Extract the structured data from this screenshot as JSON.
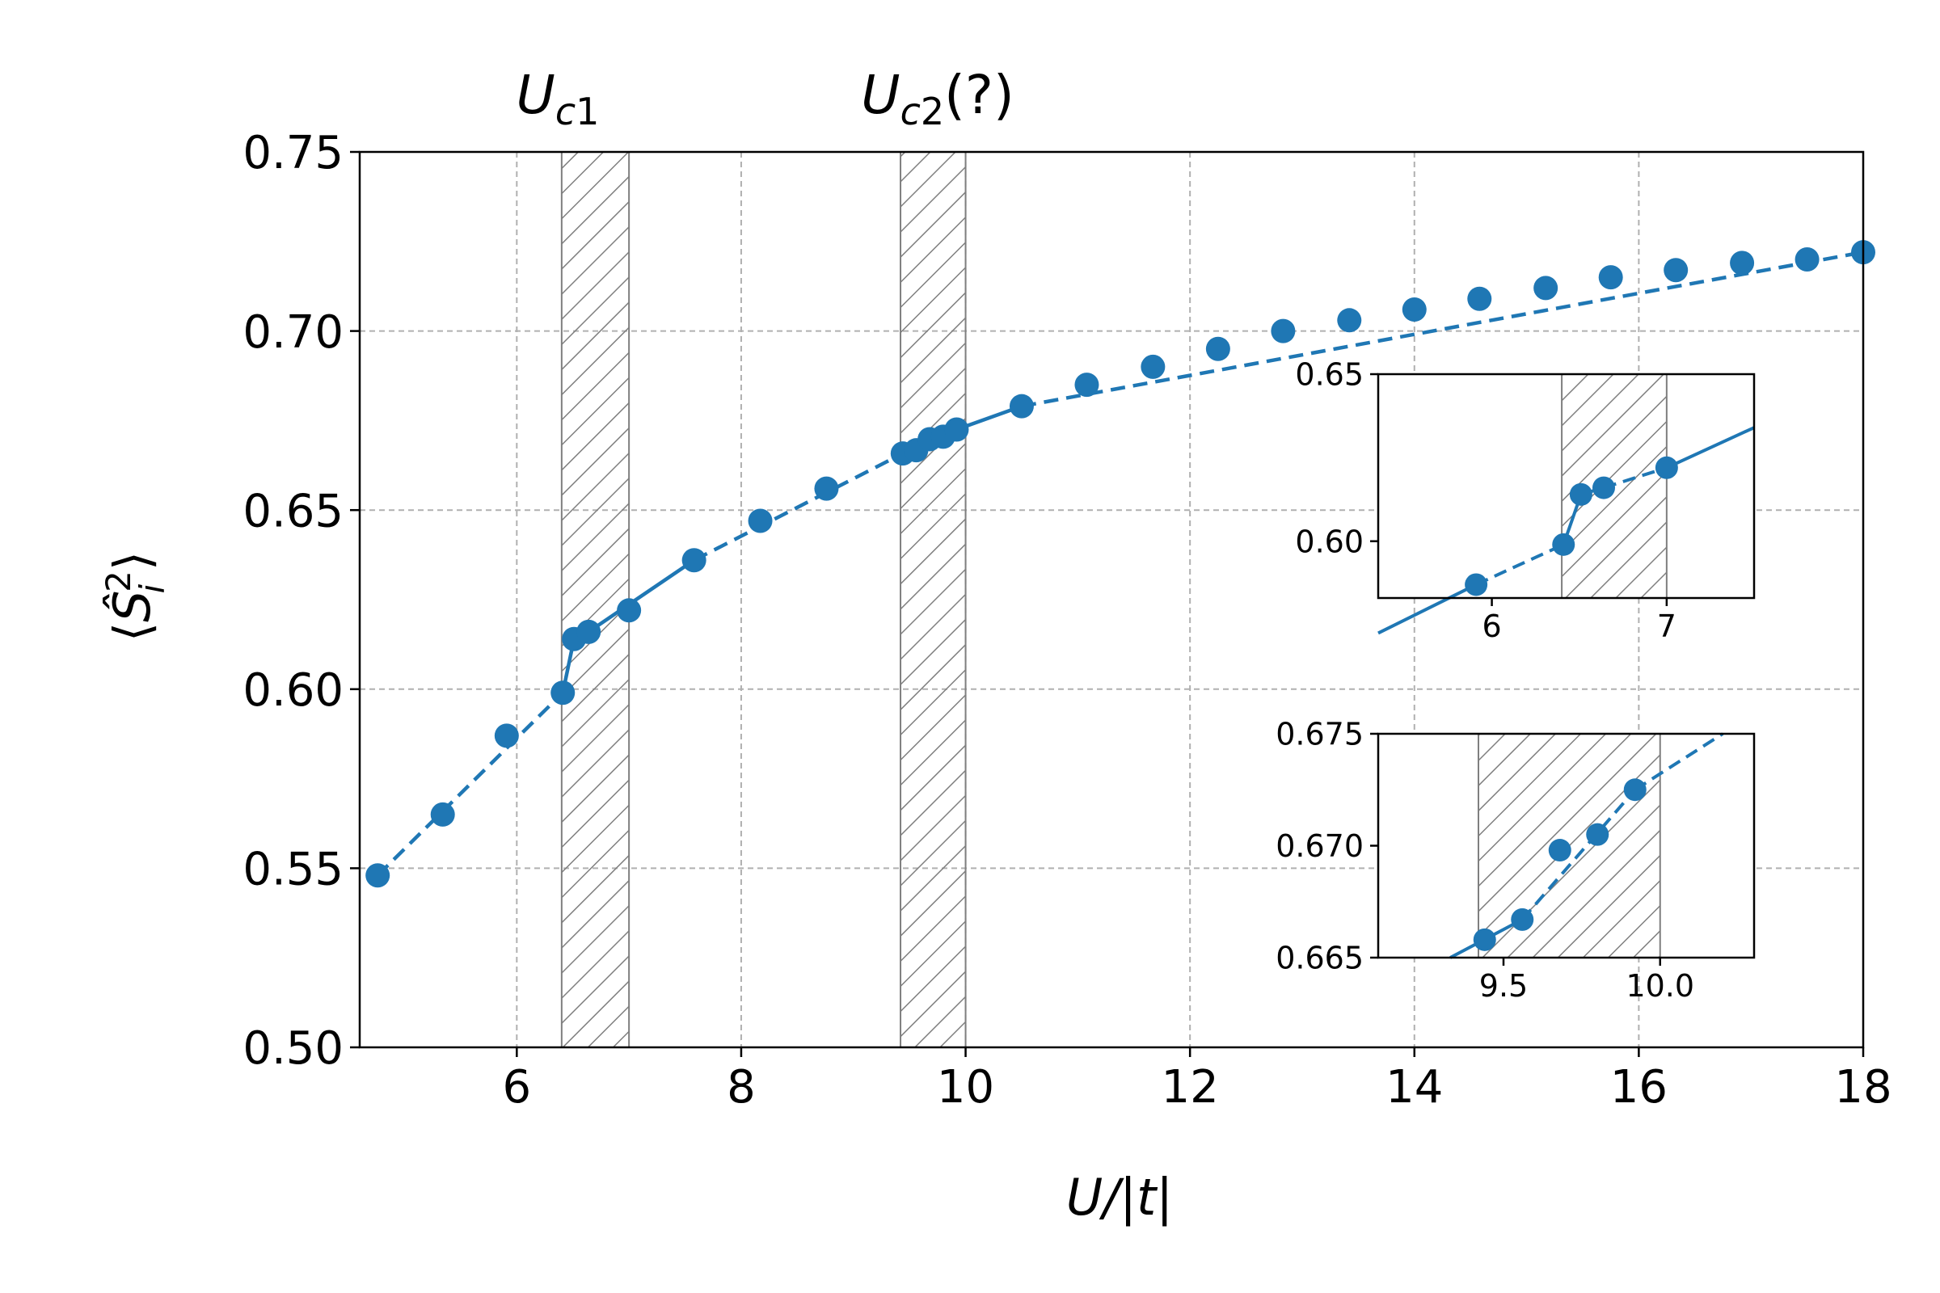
{
  "chart_data": [
    {
      "type": "line",
      "name": "main",
      "xlabel": "U/|t|",
      "ylabel": "⟨Ŝ²ᵢ⟩",
      "xlim": [
        4.6,
        18.0
      ],
      "ylim": [
        0.5,
        0.75
      ],
      "xticks": [
        6,
        8,
        10,
        12,
        14,
        16,
        18
      ],
      "xtick_labels": [
        "6",
        "8",
        "10",
        "12",
        "14",
        "16",
        "18"
      ],
      "yticks": [
        0.5,
        0.55,
        0.6,
        0.65,
        0.7,
        0.75
      ],
      "ytick_labels": [
        "0.50",
        "0.55",
        "0.60",
        "0.65",
        "0.70",
        "0.75"
      ],
      "grid": true,
      "color": "#1f77b4",
      "annotations": [
        {
          "label": "U",
          "sub": "c1",
          "suffix": "",
          "x_center": 6.5
        },
        {
          "label": "U",
          "sub": "c2",
          "suffix": "(?)",
          "x_center": 9.8
        }
      ],
      "hatched_regions": [
        [
          6.4,
          7.0
        ],
        [
          9.42,
          10.0
        ]
      ],
      "series": [
        {
          "x": [
            4.76,
            5.34,
            5.91,
            6.41,
            6.51,
            6.64,
            7.0,
            7.58,
            8.17,
            8.76,
            9.44,
            9.56,
            9.68,
            9.8,
            9.92,
            10.5,
            11.08,
            11.67,
            12.25,
            12.83,
            13.42,
            14.0,
            14.58,
            15.17,
            15.75,
            16.33,
            16.92,
            17.5,
            18.0
          ],
          "values": [
            0.548,
            0.565,
            0.587,
            0.599,
            0.614,
            0.616,
            0.622,
            0.636,
            0.647,
            0.656,
            0.6658,
            0.6667,
            0.6698,
            0.6705,
            0.6725,
            0.679,
            0.685,
            0.69,
            0.695,
            0.7,
            0.703,
            0.706,
            0.709,
            0.712,
            0.715,
            0.717,
            0.719,
            0.72,
            0.722
          ],
          "line_segments": [
            {
              "from": 4.76,
              "to": 6.41,
              "style": "dashed"
            },
            {
              "from": 6.41,
              "to": 6.51,
              "style": "solid"
            },
            {
              "from": 6.51,
              "to": 6.64,
              "style": "dashed"
            },
            {
              "from": 6.64,
              "to": 7.58,
              "style": "solid"
            },
            {
              "from": 7.58,
              "to": 9.44,
              "style": "dashed"
            },
            {
              "from": 9.44,
              "to": 9.56,
              "style": "solid"
            },
            {
              "from": 9.56,
              "to": 9.92,
              "style": "dashed"
            },
            {
              "from": 9.92,
              "to": 10.5,
              "style": "solid"
            },
            {
              "from": 10.5,
              "to": 18.0,
              "style": "dashed"
            }
          ]
        }
      ]
    },
    {
      "type": "line",
      "name": "inset-top",
      "xlim": [
        5.35,
        7.5
      ],
      "ylim": [
        0.583,
        0.65
      ],
      "xticks": [
        6,
        7
      ],
      "xtick_labels": [
        "6",
        "7"
      ],
      "yticks": [
        0.6,
        0.65
      ],
      "ytick_labels": [
        "0.60",
        "0.65"
      ],
      "grid": false,
      "hatched_regions": [
        [
          6.4,
          7.0
        ]
      ],
      "series": [
        {
          "x": [
            5.91,
            6.41,
            6.51,
            6.64,
            7.0
          ],
          "values": [
            0.587,
            0.599,
            0.614,
            0.616,
            0.622
          ],
          "line_segments": [
            {
              "from": 5.35,
              "to": 5.91,
              "style": "solid",
              "extend_from_value": 0.5725
            },
            {
              "from": 5.91,
              "to": 6.41,
              "style": "dashed"
            },
            {
              "from": 6.41,
              "to": 6.51,
              "style": "solid"
            },
            {
              "from": 6.51,
              "to": 6.64,
              "style": "dashed"
            },
            {
              "from": 6.64,
              "to": 7.0,
              "style": "dashed"
            },
            {
              "from": 7.0,
              "to": 7.5,
              "style": "solid",
              "extend_to_value": 0.634
            }
          ]
        }
      ]
    },
    {
      "type": "line",
      "name": "inset-bottom",
      "xlim": [
        9.1,
        10.3
      ],
      "ylim": [
        0.665,
        0.675
      ],
      "xticks": [
        9.5,
        10.0
      ],
      "xtick_labels": [
        "9.5",
        "10.0"
      ],
      "yticks": [
        0.665,
        0.67,
        0.675
      ],
      "ytick_labels": [
        "0.665",
        "0.670",
        "0.675"
      ],
      "grid": false,
      "hatched_regions": [
        [
          9.42,
          10.0
        ]
      ],
      "series": [
        {
          "x": [
            9.44,
            9.56,
            9.68,
            9.8,
            9.92
          ],
          "values": [
            0.6658,
            0.6667,
            0.6698,
            0.6705,
            0.6725
          ],
          "line_segments": [
            {
              "from": 9.44,
              "to": 9.56,
              "style": "solid",
              "extend_from_x": 9.33,
              "extend_from_value": 0.665
            },
            {
              "from": 9.56,
              "to": 9.92,
              "style": "dashed"
            },
            {
              "from": 9.92,
              "to": 10.2,
              "style": "dashed",
              "extend_to_value": 0.675
            }
          ]
        }
      ]
    }
  ]
}
